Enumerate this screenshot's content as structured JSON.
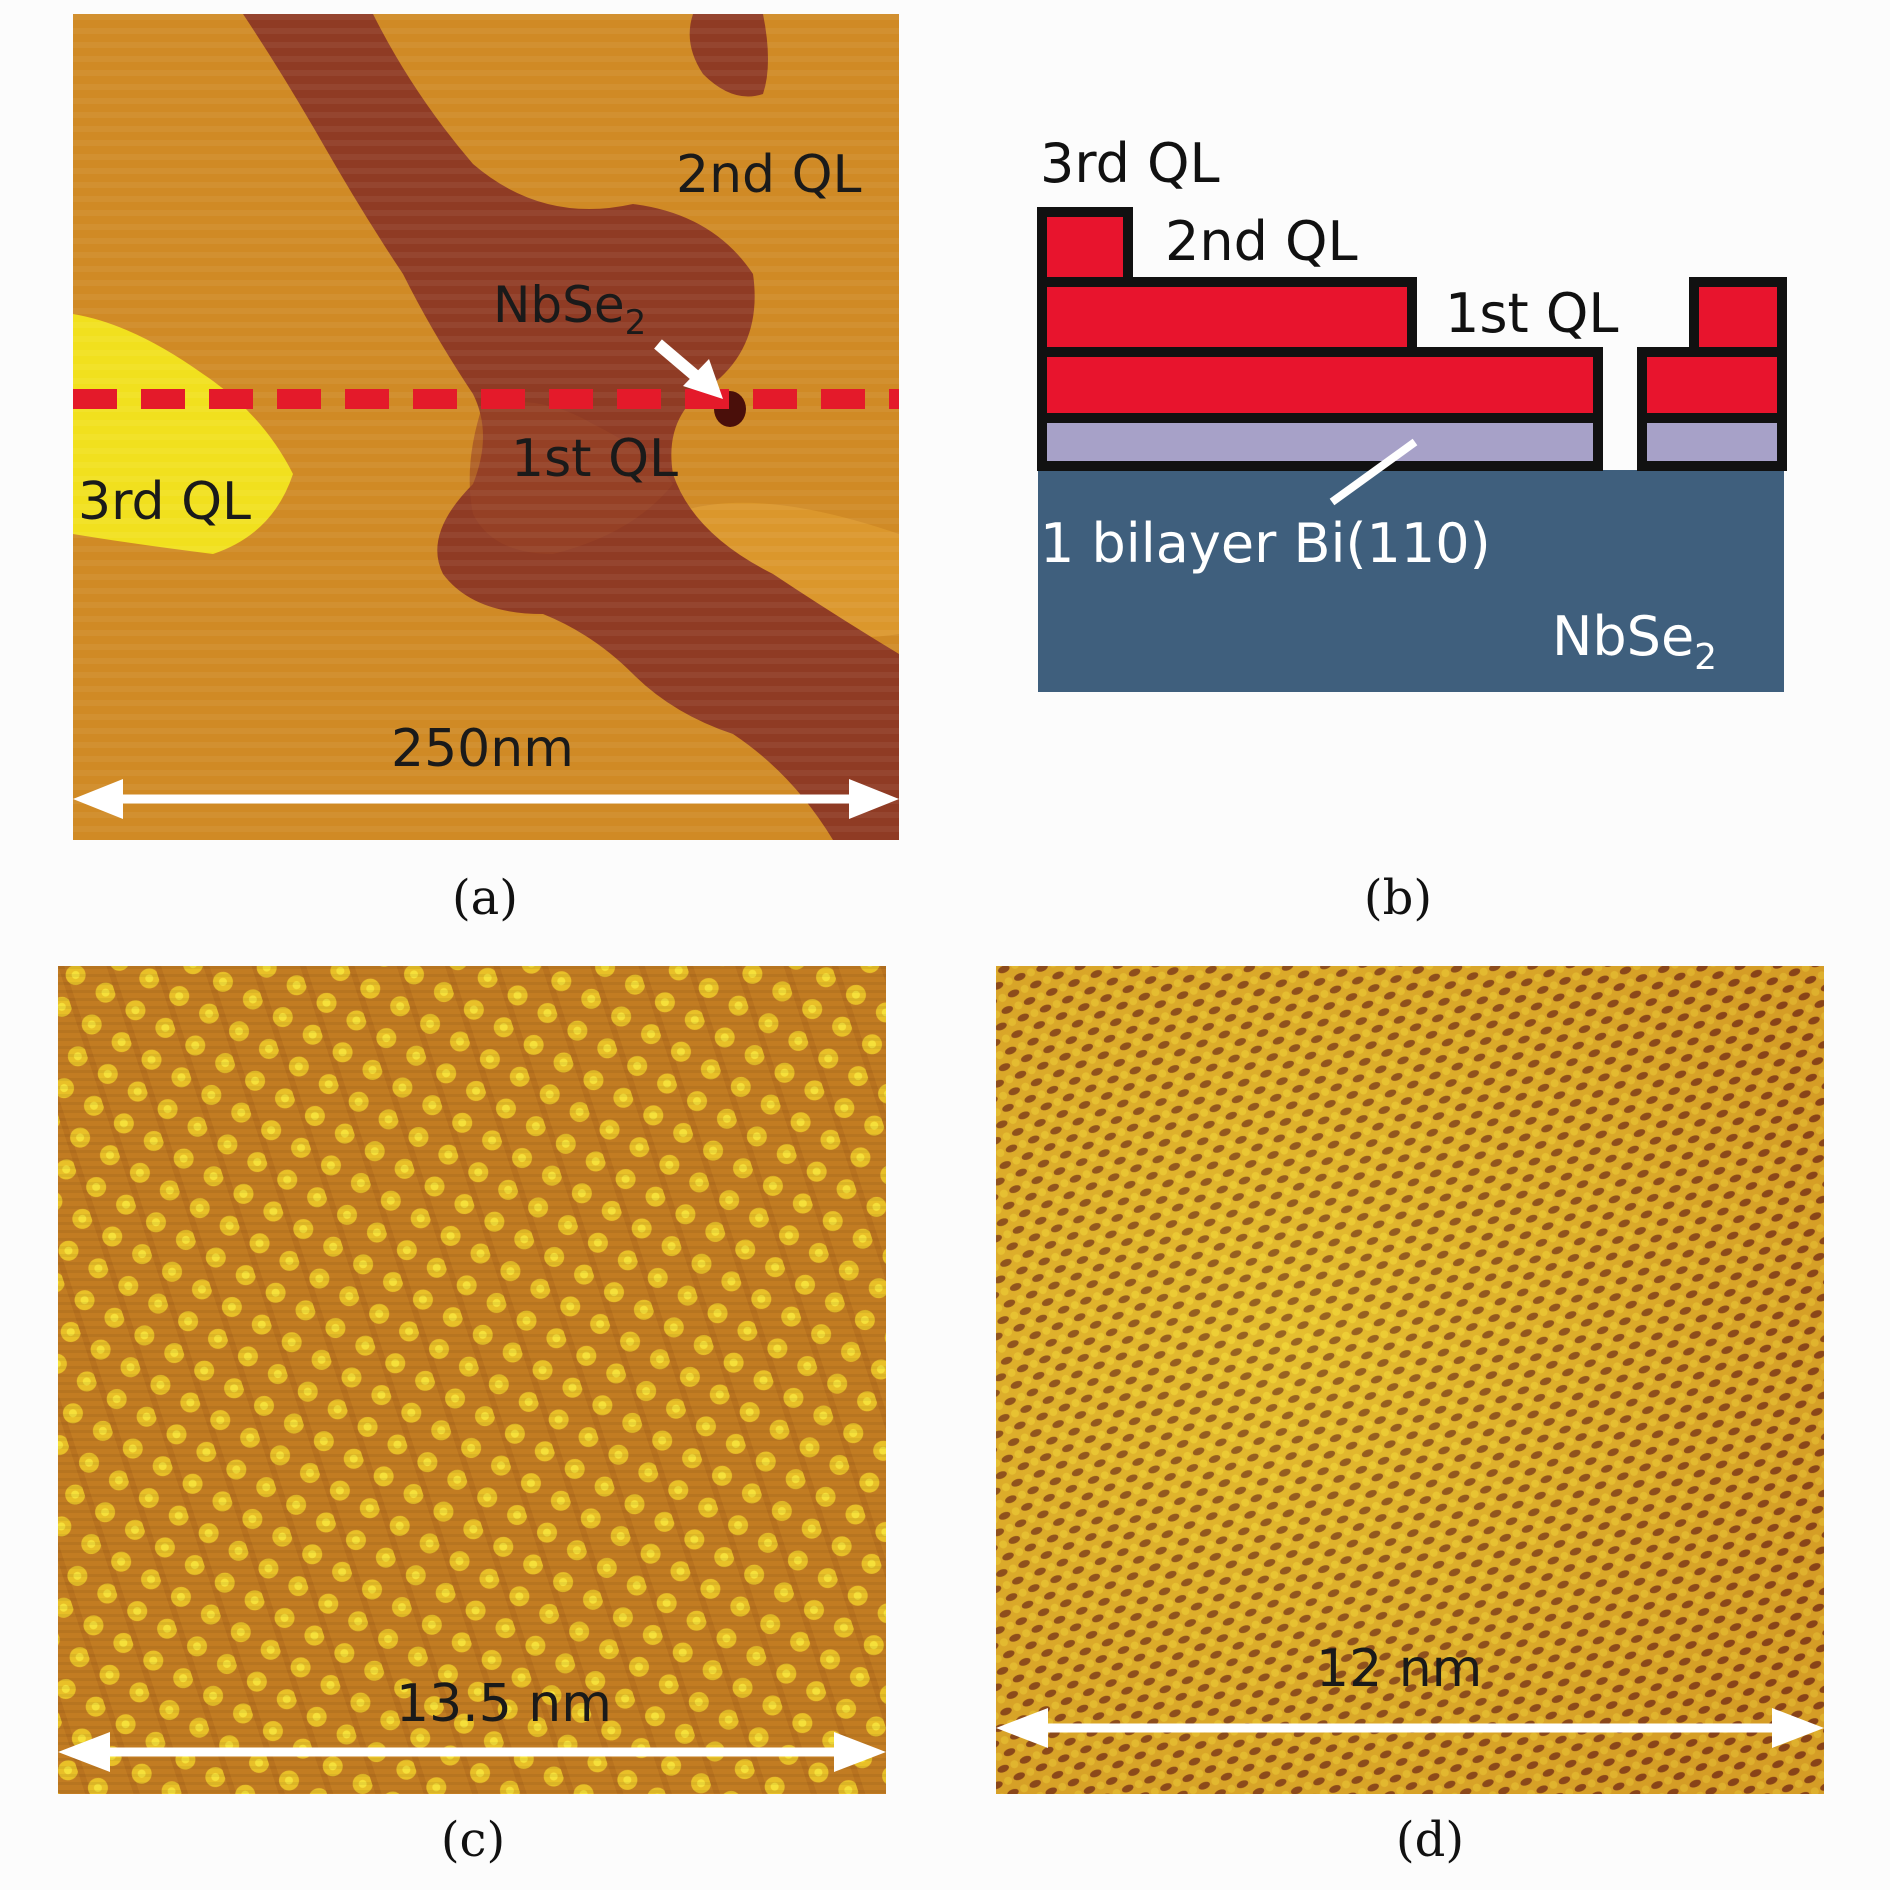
{
  "panel_a": {
    "labels": {
      "second_ql": "2nd QL",
      "nbse2_prefix": "NbSe",
      "nbse2_sub": "2",
      "first_ql": "1st QL",
      "third_ql": "3rd QL",
      "scale": "250nm"
    },
    "caption": "(a)",
    "colors": {
      "terrace_high": "#f2df1b",
      "terrace_2nd": "#d79126",
      "terrace_1st": "#c77b1f",
      "substrate": "#8c3a25",
      "line": "#e41a2a"
    }
  },
  "panel_b": {
    "labels": {
      "third_ql": "3rd QL",
      "second_ql": "2nd QL",
      "first_ql": "1st QL",
      "bilayer": "1 bilayer Bi(110)",
      "nbse2_prefix": "NbSe",
      "nbse2_sub": "2"
    },
    "caption": "(b)",
    "colors": {
      "ql": "#e8142d",
      "bilayer": "#a6a0c9",
      "substrate": "#3d5f7c"
    }
  },
  "panel_c": {
    "scale": "13.5 nm",
    "caption": "(c)"
  },
  "panel_d": {
    "scale": "12 nm",
    "caption": "(d)"
  }
}
